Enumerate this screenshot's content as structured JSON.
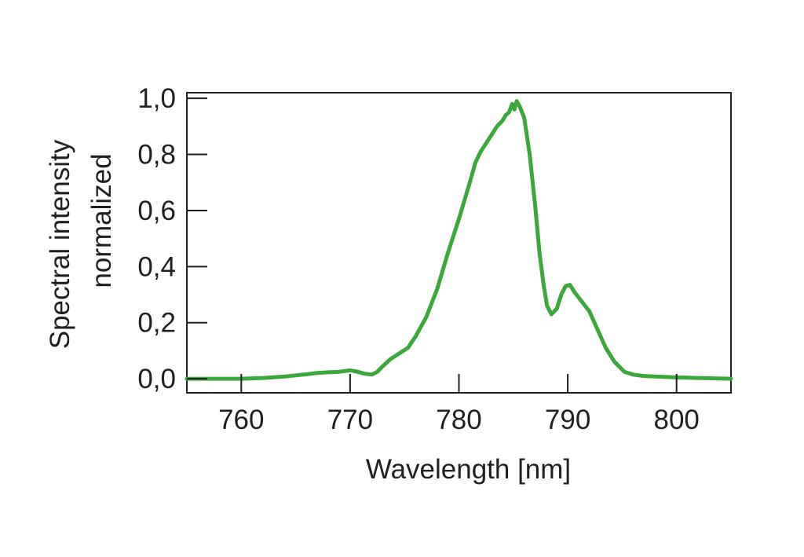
{
  "chart_data": {
    "type": "line",
    "title": "",
    "xlabel": "Wavelength [nm]",
    "ylabel_lines": [
      "Spectral intensity",
      "normalized"
    ],
    "xlim": [
      755,
      805
    ],
    "ylim": [
      -0.05,
      1.02
    ],
    "x_ticks": [
      760,
      770,
      780,
      790,
      800
    ],
    "x_tick_labels": [
      "760",
      "770",
      "780",
      "790",
      "800"
    ],
    "y_ticks": [
      0.0,
      0.2,
      0.4,
      0.6,
      0.8,
      1.0
    ],
    "y_tick_labels": [
      "0,0",
      "0,2",
      "0,4",
      "0,6",
      "0,8",
      "1,0"
    ],
    "grid": false,
    "legend": false,
    "line_color": "#3aa83a",
    "series": [
      {
        "x": [
          755,
          758,
          760,
          762,
          764,
          766,
          767,
          768,
          769,
          770,
          770.7,
          771.3,
          772,
          772.5,
          773,
          773.7,
          774.5,
          775.3,
          776,
          777,
          778,
          779,
          780,
          781,
          781.5,
          782,
          782.5,
          783,
          783.5,
          784,
          784.3,
          784.6,
          784.9,
          785.1,
          785.3,
          785.6,
          786,
          786.5,
          787,
          787.4,
          787.8,
          788.1,
          788.5,
          789,
          789.4,
          789.8,
          790.2,
          790.6,
          791.2,
          792,
          792.8,
          793.5,
          794.3,
          795.2,
          796,
          797,
          798,
          800,
          802,
          805
        ],
        "y": [
          0.0,
          0.0,
          0.0,
          0.003,
          0.008,
          0.016,
          0.021,
          0.023,
          0.025,
          0.03,
          0.025,
          0.018,
          0.015,
          0.025,
          0.045,
          0.07,
          0.09,
          0.11,
          0.15,
          0.22,
          0.32,
          0.45,
          0.57,
          0.7,
          0.77,
          0.81,
          0.84,
          0.87,
          0.9,
          0.92,
          0.94,
          0.95,
          0.98,
          0.96,
          0.99,
          0.97,
          0.93,
          0.8,
          0.62,
          0.45,
          0.33,
          0.26,
          0.23,
          0.25,
          0.3,
          0.33,
          0.335,
          0.31,
          0.28,
          0.24,
          0.17,
          0.11,
          0.06,
          0.025,
          0.015,
          0.01,
          0.008,
          0.005,
          0.003,
          0.0
        ]
      }
    ]
  }
}
